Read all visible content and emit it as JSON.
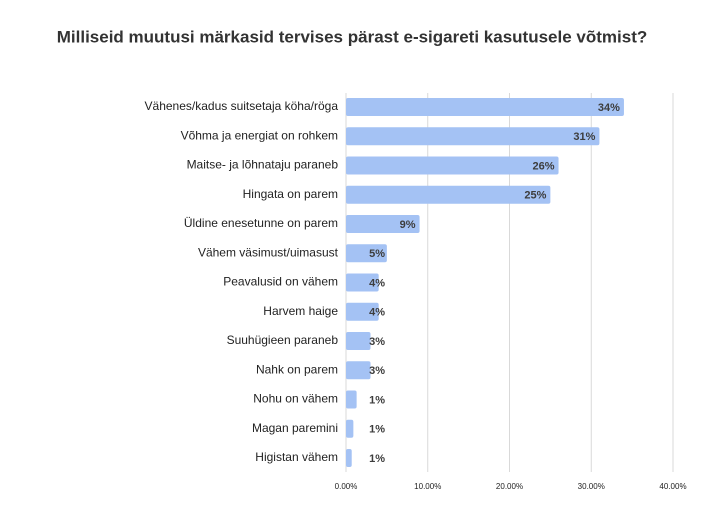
{
  "chart_data": {
    "type": "bar",
    "orientation": "horizontal",
    "title": "Milliseid muutusi märkasid tervises pärast e-sigareti kasutusele võtmist?",
    "categories": [
      "Vähenes/kadus suitsetaja köha/röga",
      "Võhma ja energiat on rohkem",
      "Maitse- ja lõhnataju paraneb",
      "Hingata on parem",
      "Üldine enesetunne on parem",
      "Vähem väsimust/uimasust",
      "Peavalusid on vähem",
      "Harvem haige",
      "Suuhügieen paraneb",
      "Nahk on parem",
      "Nohu on vähem",
      "Magan paremini",
      "Higistan vähem"
    ],
    "values": [
      34,
      31,
      26,
      25,
      9,
      5,
      4,
      4,
      3,
      3,
      1.3,
      0.9,
      0.7
    ],
    "value_labels": [
      "34%",
      "31%",
      "26%",
      "25%",
      "9%",
      "5%",
      "4%",
      "4%",
      "3%",
      "3%",
      "1%",
      "1%",
      "1%"
    ],
    "color": "#a4c2f4",
    "xlim": [
      0,
      40
    ],
    "xticks": [
      {
        "value": 0,
        "label": "0.00%"
      },
      {
        "value": 10,
        "label": "10.00%"
      },
      {
        "value": 20,
        "label": "20.00%"
      },
      {
        "value": 30,
        "label": "30.00%"
      },
      {
        "value": 40,
        "label": "40.00%"
      }
    ],
    "grid": true
  }
}
